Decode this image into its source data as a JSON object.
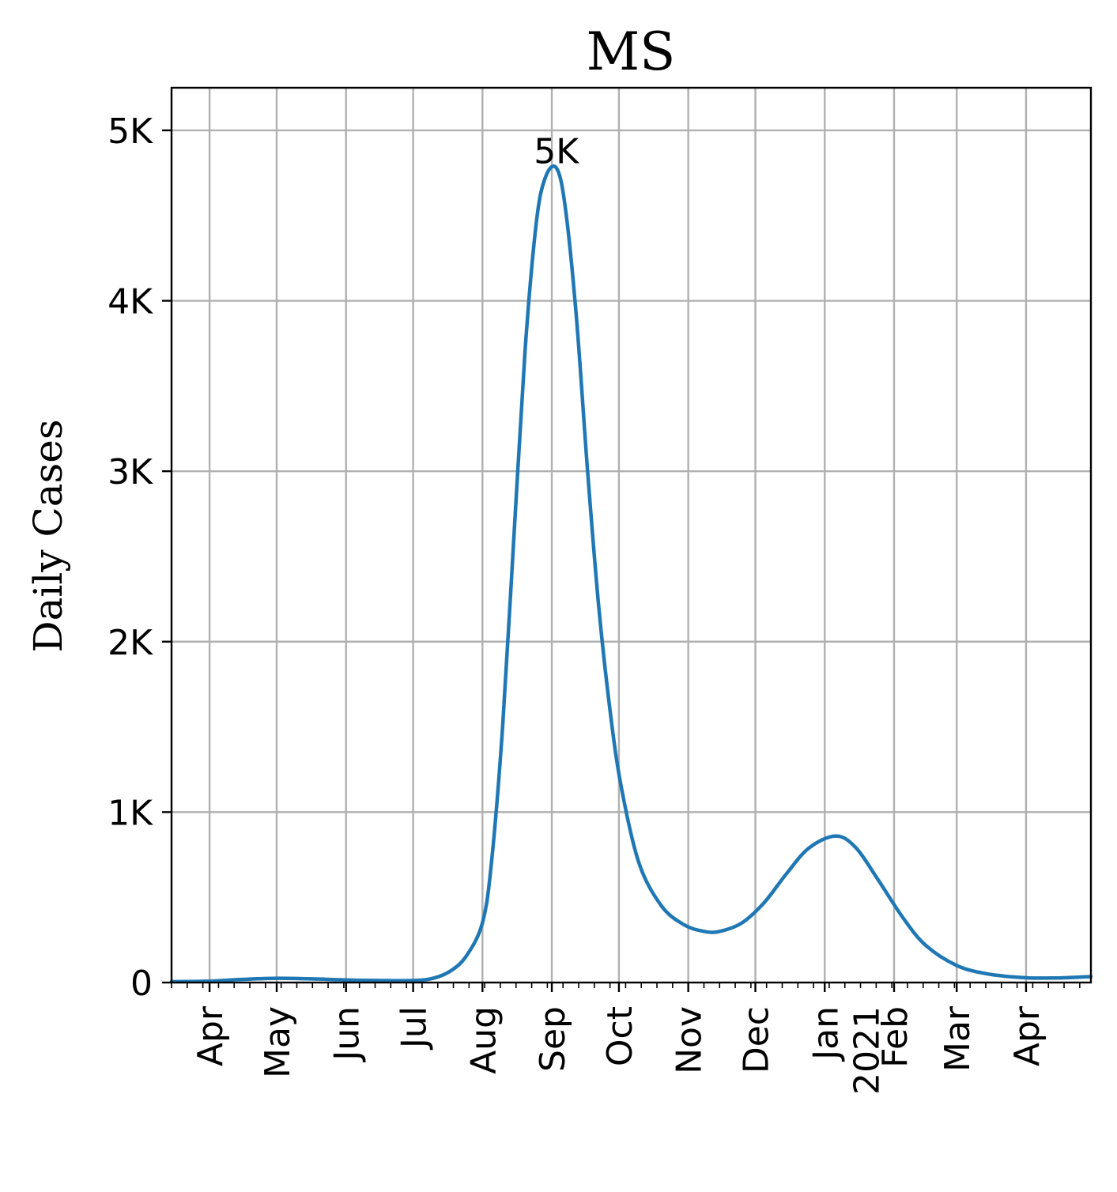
{
  "chart_data": {
    "type": "line",
    "title": "MS",
    "xlabel": "",
    "ylabel": "Daily Cases",
    "xlim": [
      "2020-03-15",
      "2021-04-30"
    ],
    "ylim": [
      0,
      5250
    ],
    "grid": true,
    "line_color": "#1f77b4",
    "y_ticks": [
      {
        "value": 0,
        "label": "0"
      },
      {
        "value": 1000,
        "label": "1K"
      },
      {
        "value": 2000,
        "label": "2K"
      },
      {
        "value": 3000,
        "label": "3K"
      },
      {
        "value": 4000,
        "label": "4K"
      },
      {
        "value": 5000,
        "label": "5K"
      }
    ],
    "x_ticks": [
      {
        "date": "2020-04-01",
        "label": "Apr"
      },
      {
        "date": "2020-05-01",
        "label": "May"
      },
      {
        "date": "2020-06-01",
        "label": "Jun"
      },
      {
        "date": "2020-07-01",
        "label": "Jul"
      },
      {
        "date": "2020-08-01",
        "label": "Aug"
      },
      {
        "date": "2020-09-01",
        "label": "Sep"
      },
      {
        "date": "2020-10-01",
        "label": "Oct"
      },
      {
        "date": "2020-11-01",
        "label": "Nov"
      },
      {
        "date": "2020-12-01",
        "label": "Dec"
      },
      {
        "date": "2021-01-01",
        "label": "Jan\n2021"
      },
      {
        "date": "2021-02-01",
        "label": "Feb"
      },
      {
        "date": "2021-03-01",
        "label": "Mar"
      },
      {
        "date": "2021-04-01",
        "label": "Apr"
      }
    ],
    "annotations": [
      {
        "date": "2020-09-03",
        "value": 4780,
        "text": "5K"
      }
    ],
    "series": [
      {
        "points": [
          [
            "2020-03-15",
            5
          ],
          [
            "2020-04-01",
            8
          ],
          [
            "2020-04-15",
            18
          ],
          [
            "2020-05-01",
            25
          ],
          [
            "2020-05-15",
            22
          ],
          [
            "2020-06-01",
            15
          ],
          [
            "2020-06-15",
            12
          ],
          [
            "2020-07-01",
            12
          ],
          [
            "2020-07-10",
            25
          ],
          [
            "2020-07-18",
            70
          ],
          [
            "2020-07-25",
            160
          ],
          [
            "2020-08-01",
            350
          ],
          [
            "2020-08-05",
            700
          ],
          [
            "2020-08-10",
            1500
          ],
          [
            "2020-08-15",
            2600
          ],
          [
            "2020-08-20",
            3700
          ],
          [
            "2020-08-25",
            4450
          ],
          [
            "2020-08-29",
            4720
          ],
          [
            "2020-09-03",
            4780
          ],
          [
            "2020-09-07",
            4550
          ],
          [
            "2020-09-12",
            3900
          ],
          [
            "2020-09-17",
            3000
          ],
          [
            "2020-09-22",
            2200
          ],
          [
            "2020-09-27",
            1600
          ],
          [
            "2020-10-02",
            1150
          ],
          [
            "2020-10-10",
            700
          ],
          [
            "2020-10-20",
            450
          ],
          [
            "2020-10-30",
            340
          ],
          [
            "2020-11-08",
            300
          ],
          [
            "2020-11-15",
            300
          ],
          [
            "2020-11-25",
            350
          ],
          [
            "2020-12-05",
            470
          ],
          [
            "2020-12-15",
            640
          ],
          [
            "2020-12-25",
            790
          ],
          [
            "2021-01-06",
            860
          ],
          [
            "2021-01-15",
            790
          ],
          [
            "2021-01-25",
            600
          ],
          [
            "2021-02-05",
            380
          ],
          [
            "2021-02-15",
            220
          ],
          [
            "2021-03-01",
            100
          ],
          [
            "2021-03-15",
            50
          ],
          [
            "2021-04-01",
            28
          ],
          [
            "2021-04-15",
            27
          ],
          [
            "2021-04-30",
            35
          ]
        ]
      }
    ]
  }
}
